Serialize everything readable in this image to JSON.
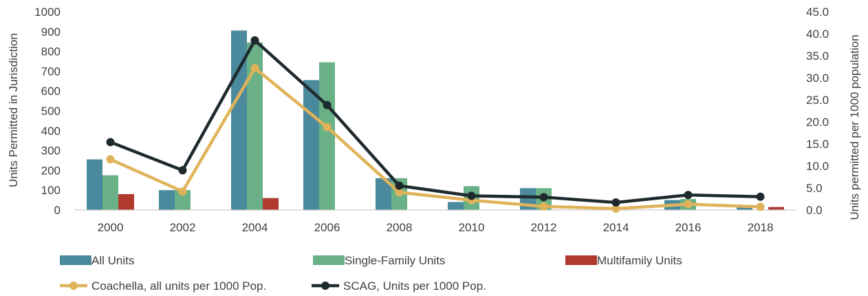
{
  "chart_data": {
    "type": "bar",
    "categories": [
      "2000",
      "2002",
      "2004",
      "2006",
      "2008",
      "2010",
      "2012",
      "2014",
      "2016",
      "2018"
    ],
    "title": "",
    "ylabel": "Units Permitted in Jurisdiction",
    "y2label": "Units permitted per 1000 population",
    "ylim": [
      0,
      1000
    ],
    "y2lim": [
      0,
      45
    ],
    "yticks": [
      "0",
      "100",
      "200",
      "300",
      "400",
      "500",
      "600",
      "700",
      "800",
      "900",
      "1000"
    ],
    "y2ticks": [
      "0.0",
      "5.0",
      "10.0",
      "15.0",
      "20.0",
      "25.0",
      "30.0",
      "35.0",
      "40.0",
      "45.0"
    ],
    "grid": false,
    "legend_position": "bottom",
    "series": [
      {
        "name": "All Units",
        "kind": "bar",
        "axis": "left",
        "color": "#4a8a9c",
        "values": [
          255,
          100,
          905,
          655,
          160,
          40,
          110,
          0,
          50,
          25
        ]
      },
      {
        "name": "Single-Family Units",
        "kind": "bar",
        "axis": "left",
        "color": "#6ab187",
        "values": [
          175,
          100,
          845,
          745,
          160,
          120,
          110,
          0,
          55,
          0
        ]
      },
      {
        "name": "Multifamily Units",
        "kind": "bar",
        "axis": "left",
        "color": "#b03a2e",
        "values": [
          80,
          0,
          60,
          0,
          0,
          0,
          0,
          0,
          0,
          15
        ]
      },
      {
        "name": "Coachella, all units per 1000 Pop.",
        "kind": "line",
        "axis": "right",
        "color": "#e0b35a",
        "values": [
          11.5,
          4.2,
          32.2,
          18.8,
          4.0,
          2.2,
          0.8,
          0.3,
          1.3,
          0.7
        ]
      },
      {
        "name": "SCAG, Units per 1000 Pop.",
        "kind": "line",
        "axis": "right",
        "color": "#1f2a2e",
        "values": [
          15.4,
          9.0,
          38.5,
          23.8,
          5.5,
          3.2,
          2.9,
          1.7,
          3.4,
          3.0
        ]
      }
    ]
  }
}
